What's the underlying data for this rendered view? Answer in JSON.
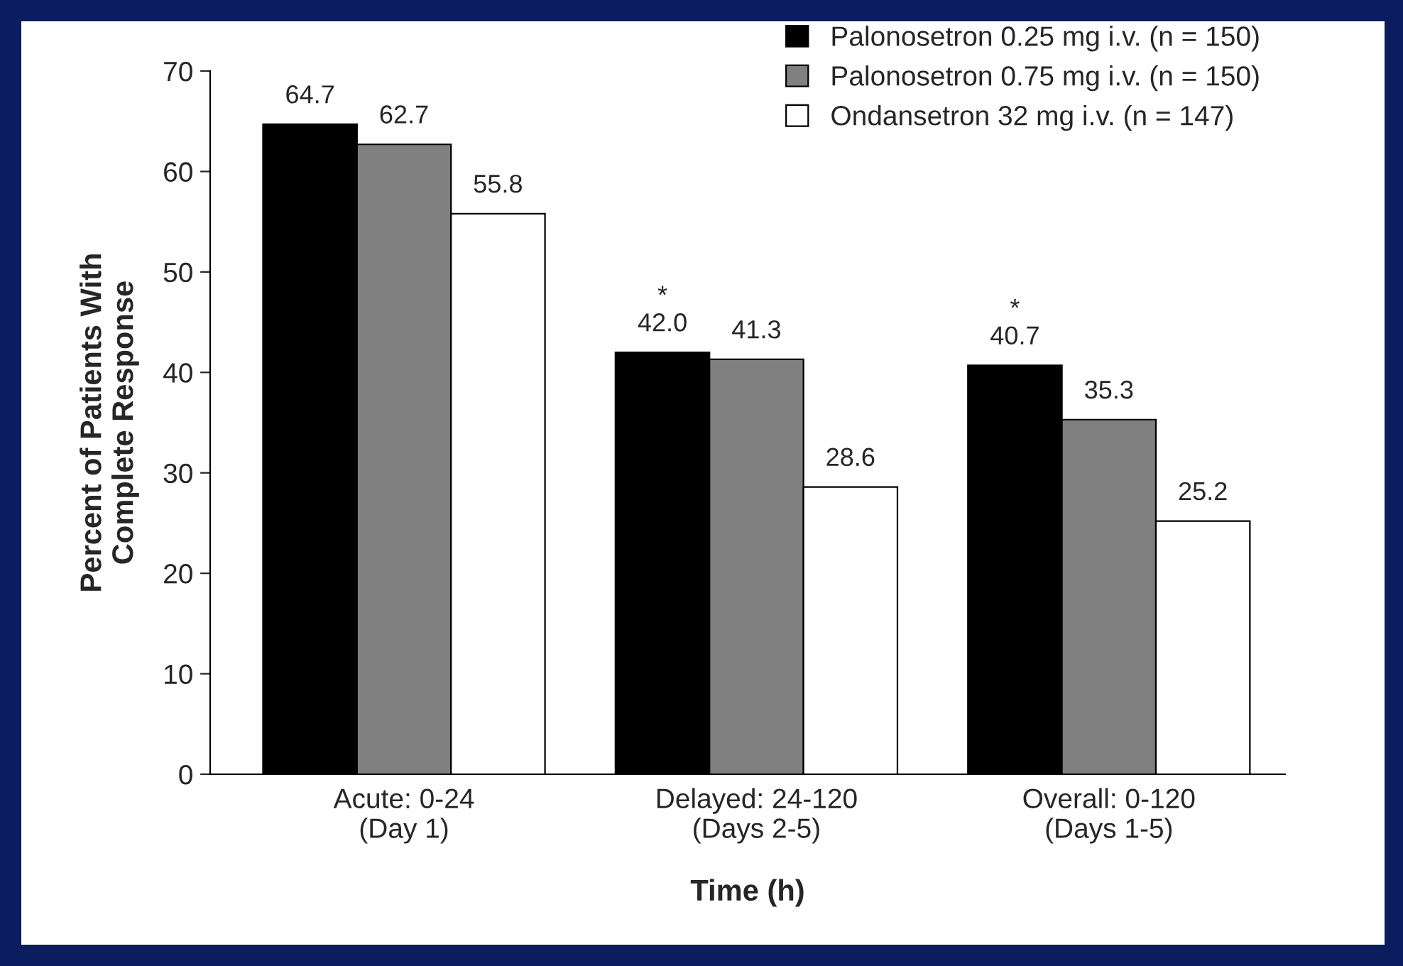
{
  "chart_data": {
    "type": "bar",
    "xlabel": "Time (h)",
    "ylabel": "Percent of Patients With\nComplete Response",
    "categories": [
      "Acute: 0-24\n(Day 1)",
      "Delayed: 24-120\n(Days 2-5)",
      "Overall: 0-120\n(Days 1-5)"
    ],
    "series": [
      {
        "name": "Palonosetron 0.25 mg i.v. (n = 150)",
        "color": "#000000",
        "values": [
          64.7,
          42.0,
          40.7
        ],
        "value_labels": [
          "64.7",
          "*\n42.0",
          "*\n40.7"
        ]
      },
      {
        "name": "Palonosetron 0.75 mg i.v. (n = 150)",
        "color": "#808080",
        "values": [
          62.7,
          41.3,
          35.3
        ],
        "value_labels": [
          "62.7",
          "41.3",
          "35.3"
        ]
      },
      {
        "name": "Ondansetron 32 mg i.v. (n = 147)",
        "color": "#ffffff",
        "values": [
          55.8,
          28.6,
          25.2
        ],
        "value_labels": [
          "55.8",
          "28.6",
          "25.2"
        ]
      }
    ],
    "ylim": [
      0,
      70
    ],
    "yticks": [
      0,
      10,
      20,
      30,
      40,
      50,
      60,
      70
    ],
    "grid": false,
    "legend": "top right"
  }
}
